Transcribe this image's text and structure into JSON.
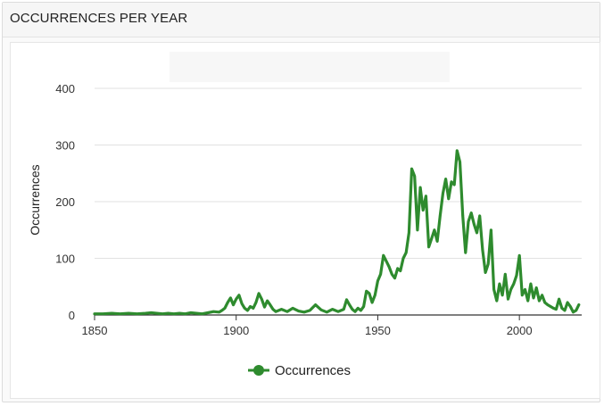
{
  "panel": {
    "title": "OCCURRENCES PER YEAR"
  },
  "chart_data": {
    "type": "line",
    "title": "",
    "xlabel": "",
    "ylabel": "Occurrences",
    "xlim": [
      1850,
      2022
    ],
    "ylim": [
      0,
      400
    ],
    "x_ticks": [
      1850,
      1900,
      1950,
      2000
    ],
    "y_ticks": [
      0,
      100,
      200,
      300,
      400
    ],
    "grid": true,
    "legend": "bottom",
    "series": [
      {
        "name": "Occurrences",
        "color": "#2e8b2e",
        "points": [
          [
            1850,
            2
          ],
          [
            1853,
            2
          ],
          [
            1856,
            3
          ],
          [
            1859,
            2
          ],
          [
            1862,
            3
          ],
          [
            1865,
            2
          ],
          [
            1868,
            3
          ],
          [
            1870,
            4
          ],
          [
            1872,
            3
          ],
          [
            1874,
            2
          ],
          [
            1876,
            3
          ],
          [
            1878,
            2
          ],
          [
            1880,
            3
          ],
          [
            1882,
            2
          ],
          [
            1884,
            4
          ],
          [
            1886,
            3
          ],
          [
            1888,
            2
          ],
          [
            1890,
            4
          ],
          [
            1892,
            6
          ],
          [
            1894,
            5
          ],
          [
            1895,
            8
          ],
          [
            1896,
            12
          ],
          [
            1897,
            22
          ],
          [
            1898,
            30
          ],
          [
            1899,
            18
          ],
          [
            1900,
            28
          ],
          [
            1901,
            35
          ],
          [
            1902,
            20
          ],
          [
            1903,
            12
          ],
          [
            1904,
            8
          ],
          [
            1905,
            15
          ],
          [
            1906,
            12
          ],
          [
            1907,
            22
          ],
          [
            1908,
            38
          ],
          [
            1909,
            28
          ],
          [
            1910,
            14
          ],
          [
            1911,
            25
          ],
          [
            1912,
            18
          ],
          [
            1913,
            10
          ],
          [
            1914,
            6
          ],
          [
            1916,
            10
          ],
          [
            1918,
            6
          ],
          [
            1920,
            12
          ],
          [
            1922,
            7
          ],
          [
            1924,
            5
          ],
          [
            1926,
            8
          ],
          [
            1928,
            18
          ],
          [
            1930,
            9
          ],
          [
            1932,
            5
          ],
          [
            1934,
            10
          ],
          [
            1936,
            6
          ],
          [
            1938,
            10
          ],
          [
            1939,
            27
          ],
          [
            1940,
            18
          ],
          [
            1941,
            10
          ],
          [
            1942,
            6
          ],
          [
            1943,
            12
          ],
          [
            1944,
            8
          ],
          [
            1945,
            15
          ],
          [
            1946,
            42
          ],
          [
            1947,
            38
          ],
          [
            1948,
            22
          ],
          [
            1949,
            35
          ],
          [
            1950,
            60
          ],
          [
            1951,
            72
          ],
          [
            1952,
            105
          ],
          [
            1953,
            95
          ],
          [
            1954,
            85
          ],
          [
            1955,
            72
          ],
          [
            1956,
            65
          ],
          [
            1957,
            82
          ],
          [
            1958,
            78
          ],
          [
            1959,
            100
          ],
          [
            1960,
            110
          ],
          [
            1961,
            145
          ],
          [
            1962,
            258
          ],
          [
            1963,
            245
          ],
          [
            1964,
            150
          ],
          [
            1965,
            225
          ],
          [
            1966,
            185
          ],
          [
            1967,
            210
          ],
          [
            1968,
            120
          ],
          [
            1969,
            135
          ],
          [
            1970,
            150
          ],
          [
            1971,
            130
          ],
          [
            1972,
            175
          ],
          [
            1973,
            215
          ],
          [
            1974,
            240
          ],
          [
            1975,
            205
          ],
          [
            1976,
            235
          ],
          [
            1977,
            230
          ],
          [
            1978,
            290
          ],
          [
            1979,
            270
          ],
          [
            1980,
            175
          ],
          [
            1981,
            110
          ],
          [
            1982,
            165
          ],
          [
            1983,
            180
          ],
          [
            1984,
            160
          ],
          [
            1985,
            145
          ],
          [
            1986,
            175
          ],
          [
            1987,
            115
          ],
          [
            1988,
            75
          ],
          [
            1989,
            90
          ],
          [
            1990,
            150
          ],
          [
            1991,
            45
          ],
          [
            1992,
            25
          ],
          [
            1993,
            55
          ],
          [
            1994,
            35
          ],
          [
            1995,
            72
          ],
          [
            1996,
            28
          ],
          [
            1997,
            45
          ],
          [
            1998,
            55
          ],
          [
            1999,
            70
          ],
          [
            2000,
            105
          ],
          [
            2001,
            35
          ],
          [
            2002,
            45
          ],
          [
            2003,
            25
          ],
          [
            2004,
            55
          ],
          [
            2005,
            30
          ],
          [
            2006,
            48
          ],
          [
            2007,
            25
          ],
          [
            2008,
            35
          ],
          [
            2009,
            22
          ],
          [
            2010,
            18
          ],
          [
            2011,
            15
          ],
          [
            2012,
            12
          ],
          [
            2013,
            10
          ],
          [
            2014,
            28
          ],
          [
            2015,
            12
          ],
          [
            2016,
            8
          ],
          [
            2017,
            22
          ],
          [
            2018,
            15
          ],
          [
            2019,
            5
          ],
          [
            2020,
            8
          ],
          [
            2021,
            18
          ]
        ]
      }
    ]
  }
}
